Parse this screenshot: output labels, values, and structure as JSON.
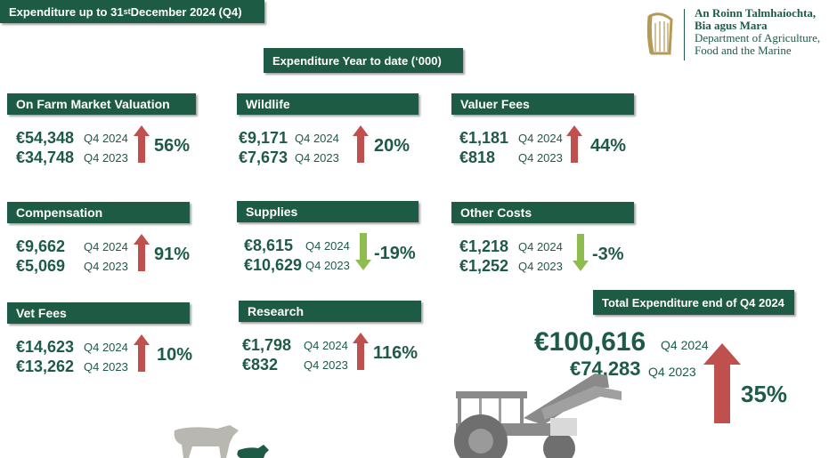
{
  "header": {
    "title_main": "Expenditure up to 31",
    "title_sup": "st",
    "title_end": " December 2024 (Q4)",
    "subtitle": "Expenditure Year to date (‘000)"
  },
  "logo": {
    "line1": "An Roinn Talmhaíochta,",
    "line2": "Bia agus Mara",
    "line3": "Department of Agriculture,",
    "line4": "Food and the Marine"
  },
  "cards": [
    {
      "title": "On Farm Market Valuation",
      "v2024": "€54,348",
      "q2024": "Q4 2024",
      "v2023": "€34,748",
      "q2023": "Q4 2023",
      "pct": "56%",
      "dir": "up"
    },
    {
      "title": "Wildlife",
      "v2024": "€9,171",
      "q2024": "Q4 2024",
      "v2023": "€7,673",
      "q2023": "Q4 2023",
      "pct": "20%",
      "dir": "up"
    },
    {
      "title": "Valuer Fees",
      "v2024": "€1,181",
      "q2024": "Q4 2024",
      "v2023": "€818",
      "q2023": "Q4 2023",
      "pct": "44%",
      "dir": "up"
    },
    {
      "title": "Compensation",
      "v2024": "€9,662",
      "q2024": "Q4 2024",
      "v2023": "€5,069",
      "q2023": "Q4 2023",
      "pct": "91%",
      "dir": "up"
    },
    {
      "title": "Supplies",
      "v2024": "€8,615",
      "q2024": "Q4 2024",
      "v2023": "€10,629",
      "q2023": "Q4 2023",
      "pct": "-19%",
      "dir": "down"
    },
    {
      "title": "Other Costs",
      "v2024": "€1,218",
      "q2024": "Q4 2024",
      "v2023": "€1,252",
      "q2023": "Q4 2023",
      "pct": "-3%",
      "dir": "down"
    },
    {
      "title": "Vet Fees",
      "v2024": "€14,623",
      "q2024": "Q4 2024",
      "v2023": "€13,262",
      "q2023": "Q4 2023",
      "pct": "10%",
      "dir": "up"
    },
    {
      "title": "Research",
      "v2024": "€1,798",
      "q2024": "Q4 2024",
      "v2023": "€832",
      "q2023": "Q4 2023",
      "pct": "116%",
      "dir": "up"
    }
  ],
  "total": {
    "title": "Total Expenditure end of Q4 2024",
    "v2024": "€100,616",
    "q2024": "Q4 2024",
    "v2023": "€74,283",
    "q2023": "Q4 2023",
    "pct": "35%",
    "dir": "up"
  },
  "colors": {
    "header_bg": "#1e5b45",
    "up_arrow": "#c0504d",
    "down_arrow": "#8fbc4f",
    "text": "#1e5b45"
  },
  "icons": [
    "harp-icon",
    "cow-icon",
    "tractor-icon"
  ]
}
